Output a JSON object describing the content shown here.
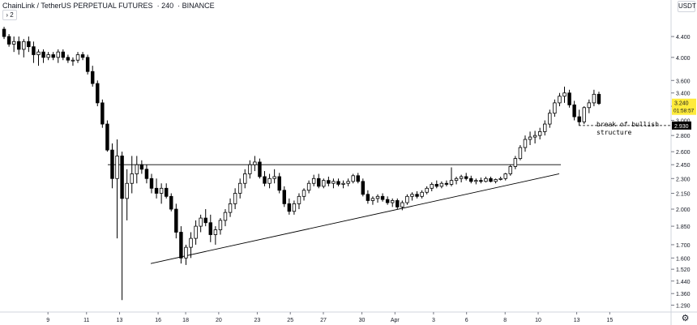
{
  "header": {
    "symbol": "ChainLink / TetherUS PERPETUAL FUTURES",
    "interval": "240",
    "exchange": "BINANCE"
  },
  "collapse_label": "› 2",
  "currency_label": "USDT",
  "settings_icon": "gear-icon",
  "colors": {
    "up_body": "#ffffff",
    "down_body": "#000000",
    "candle_outline": "#000000",
    "axis_text": "#131722",
    "price_badge": "#ffeb3b",
    "level_badge": "#000000"
  },
  "price_badges": {
    "last_price": "3.240",
    "countdown": "01:58:57",
    "level": "2.930"
  },
  "annotation": "break of bullish\nstructure",
  "chart_data": {
    "type": "candlestick",
    "y_scale": "log",
    "ylim": [
      1.25,
      4.9
    ],
    "y_ticks": [
      "4.400",
      "4.000",
      "3.600",
      "3.400",
      "3.200",
      "3.000",
      "2.800",
      "2.600",
      "2.450",
      "2.300",
      "2.150",
      "2.000",
      "1.850",
      "1.700",
      "1.600",
      "1.520",
      "1.440",
      "1.360",
      "1.290"
    ],
    "x_ticks": [
      "9",
      "11",
      "13",
      "16",
      "18",
      "20",
      "23",
      "25",
      "27",
      "30",
      "Apr",
      "3",
      "6",
      "8",
      "10",
      "13",
      "15"
    ],
    "candles": [
      [
        4.55,
        4.6,
        4.35,
        4.4
      ],
      [
        4.4,
        4.45,
        4.2,
        4.25
      ],
      [
        4.25,
        4.4,
        4.1,
        4.3
      ],
      [
        4.3,
        4.4,
        4.05,
        4.15
      ],
      [
        4.15,
        4.35,
        4.0,
        4.3
      ],
      [
        4.3,
        4.4,
        4.1,
        4.2
      ],
      [
        4.2,
        4.3,
        3.9,
        4.05
      ],
      [
        4.05,
        4.15,
        3.85,
        4.1
      ],
      [
        4.1,
        4.15,
        3.9,
        4.0
      ],
      [
        4.0,
        4.1,
        3.95,
        4.05
      ],
      [
        4.05,
        4.1,
        3.95,
        4.0
      ],
      [
        4.0,
        4.15,
        3.9,
        4.1
      ],
      [
        4.1,
        4.15,
        3.95,
        4.0
      ],
      [
        4.0,
        4.05,
        3.9,
        3.95
      ],
      [
        3.95,
        4.0,
        3.85,
        3.95
      ],
      [
        3.95,
        4.1,
        3.9,
        4.05
      ],
      [
        4.05,
        4.1,
        3.95,
        4.0
      ],
      [
        4.0,
        4.05,
        3.7,
        3.75
      ],
      [
        3.75,
        3.85,
        3.5,
        3.55
      ],
      [
        3.55,
        3.6,
        3.2,
        3.25
      ],
      [
        3.25,
        3.3,
        2.9,
        2.95
      ],
      [
        2.95,
        3.0,
        2.6,
        2.62
      ],
      [
        2.62,
        2.7,
        2.2,
        2.3
      ],
      [
        2.3,
        2.75,
        1.75,
        2.55
      ],
      [
        2.55,
        2.6,
        1.32,
        2.1
      ],
      [
        2.1,
        2.4,
        1.9,
        2.25
      ],
      [
        2.25,
        2.55,
        2.15,
        2.35
      ],
      [
        2.35,
        2.55,
        2.25,
        2.45
      ],
      [
        2.45,
        2.5,
        2.35,
        2.4
      ],
      [
        2.4,
        2.45,
        2.25,
        2.3
      ],
      [
        2.3,
        2.35,
        2.15,
        2.2
      ],
      [
        2.2,
        2.3,
        2.1,
        2.15
      ],
      [
        2.15,
        2.25,
        2.05,
        2.2
      ],
      [
        2.2,
        2.25,
        2.1,
        2.12
      ],
      [
        2.12,
        2.15,
        1.98,
        2.0
      ],
      [
        2.0,
        2.05,
        1.75,
        1.8
      ],
      [
        1.8,
        1.85,
        1.56,
        1.6
      ],
      [
        1.6,
        1.7,
        1.55,
        1.68
      ],
      [
        1.68,
        1.8,
        1.6,
        1.75
      ],
      [
        1.75,
        1.9,
        1.7,
        1.85
      ],
      [
        1.85,
        1.95,
        1.8,
        1.92
      ],
      [
        1.92,
        2.0,
        1.85,
        1.88
      ],
      [
        1.88,
        1.95,
        1.72,
        1.78
      ],
      [
        1.78,
        1.85,
        1.7,
        1.82
      ],
      [
        1.82,
        1.92,
        1.78,
        1.9
      ],
      [
        1.9,
        2.0,
        1.85,
        1.97
      ],
      [
        1.97,
        2.1,
        1.93,
        2.05
      ],
      [
        2.05,
        2.2,
        2.0,
        2.15
      ],
      [
        2.15,
        2.3,
        2.1,
        2.25
      ],
      [
        2.25,
        2.4,
        2.2,
        2.35
      ],
      [
        2.35,
        2.5,
        2.3,
        2.45
      ],
      [
        2.45,
        2.55,
        2.38,
        2.48
      ],
      [
        2.48,
        2.52,
        2.3,
        2.32
      ],
      [
        2.32,
        2.38,
        2.22,
        2.25
      ],
      [
        2.25,
        2.35,
        2.2,
        2.3
      ],
      [
        2.3,
        2.4,
        2.25,
        2.32
      ],
      [
        2.32,
        2.36,
        2.15,
        2.18
      ],
      [
        2.18,
        2.22,
        2.02,
        2.05
      ],
      [
        2.05,
        2.1,
        1.95,
        1.98
      ],
      [
        1.98,
        2.08,
        1.95,
        2.05
      ],
      [
        2.05,
        2.15,
        2.0,
        2.12
      ],
      [
        2.12,
        2.2,
        2.08,
        2.18
      ],
      [
        2.18,
        2.28,
        2.15,
        2.25
      ],
      [
        2.25,
        2.34,
        2.22,
        2.3
      ],
      [
        2.3,
        2.35,
        2.2,
        2.22
      ],
      [
        2.22,
        2.3,
        2.2,
        2.28
      ],
      [
        2.28,
        2.32,
        2.22,
        2.25
      ],
      [
        2.25,
        2.3,
        2.2,
        2.27
      ],
      [
        2.27,
        2.3,
        2.22,
        2.24
      ],
      [
        2.24,
        2.28,
        2.2,
        2.25
      ],
      [
        2.25,
        2.3,
        2.22,
        2.27
      ],
      [
        2.27,
        2.35,
        2.25,
        2.33
      ],
      [
        2.33,
        2.36,
        2.25,
        2.27
      ],
      [
        2.27,
        2.3,
        2.12,
        2.14
      ],
      [
        2.14,
        2.18,
        2.05,
        2.08
      ],
      [
        2.08,
        2.12,
        2.04,
        2.1
      ],
      [
        2.1,
        2.14,
        2.06,
        2.12
      ],
      [
        2.12,
        2.15,
        2.07,
        2.09
      ],
      [
        2.09,
        2.12,
        2.04,
        2.06
      ],
      [
        2.06,
        2.1,
        2.02,
        2.08
      ],
      [
        2.08,
        2.1,
        2.0,
        2.02
      ],
      [
        2.02,
        2.08,
        1.99,
        2.06
      ],
      [
        2.06,
        2.14,
        2.04,
        2.12
      ],
      [
        2.12,
        2.16,
        2.08,
        2.14
      ],
      [
        2.14,
        2.17,
        2.1,
        2.12
      ],
      [
        2.12,
        2.18,
        2.1,
        2.16
      ],
      [
        2.16,
        2.22,
        2.14,
        2.2
      ],
      [
        2.2,
        2.26,
        2.17,
        2.24
      ],
      [
        2.24,
        2.28,
        2.2,
        2.22
      ],
      [
        2.22,
        2.27,
        2.2,
        2.25
      ],
      [
        2.25,
        2.28,
        2.22,
        2.24
      ],
      [
        2.24,
        2.42,
        2.22,
        2.28
      ],
      [
        2.28,
        2.32,
        2.24,
        2.3
      ],
      [
        2.3,
        2.34,
        2.26,
        2.32
      ],
      [
        2.32,
        2.36,
        2.28,
        2.3
      ],
      [
        2.3,
        2.33,
        2.25,
        2.27
      ],
      [
        2.27,
        2.3,
        2.24,
        2.28
      ],
      [
        2.28,
        2.31,
        2.25,
        2.27
      ],
      [
        2.27,
        2.32,
        2.26,
        2.3
      ],
      [
        2.3,
        2.32,
        2.26,
        2.27
      ],
      [
        2.27,
        2.3,
        2.25,
        2.29
      ],
      [
        2.29,
        2.32,
        2.28,
        2.3
      ],
      [
        2.3,
        2.36,
        2.28,
        2.35
      ],
      [
        2.35,
        2.45,
        2.33,
        2.43
      ],
      [
        2.43,
        2.55,
        2.4,
        2.52
      ],
      [
        2.52,
        2.68,
        2.5,
        2.65
      ],
      [
        2.65,
        2.8,
        2.6,
        2.75
      ],
      [
        2.75,
        2.85,
        2.68,
        2.78
      ],
      [
        2.78,
        2.86,
        2.7,
        2.8
      ],
      [
        2.8,
        2.9,
        2.75,
        2.85
      ],
      [
        2.85,
        3.0,
        2.8,
        2.95
      ],
      [
        2.95,
        3.15,
        2.9,
        3.1
      ],
      [
        3.1,
        3.3,
        3.05,
        3.25
      ],
      [
        3.25,
        3.4,
        3.2,
        3.35
      ],
      [
        3.35,
        3.5,
        3.25,
        3.4
      ],
      [
        3.4,
        3.45,
        3.18,
        3.22
      ],
      [
        3.22,
        3.28,
        3.0,
        3.05
      ],
      [
        3.05,
        3.15,
        2.93,
        2.98
      ],
      [
        2.98,
        3.2,
        2.95,
        3.18
      ],
      [
        3.18,
        3.3,
        3.1,
        3.25
      ],
      [
        3.25,
        3.45,
        3.2,
        3.38
      ],
      [
        3.38,
        3.42,
        3.22,
        3.24
      ]
    ],
    "trendlines": [
      {
        "from": [
          "16",
          1.56
        ],
        "to": [
          "8",
          2.35
        ]
      },
      {
        "from": [
          "13",
          2.45
        ],
        "to": [
          "8",
          2.45
        ]
      },
      {
        "from": [
          "9",
          2.93
        ],
        "to": [
          "13",
          2.93
        ],
        "dashed": true
      }
    ]
  }
}
